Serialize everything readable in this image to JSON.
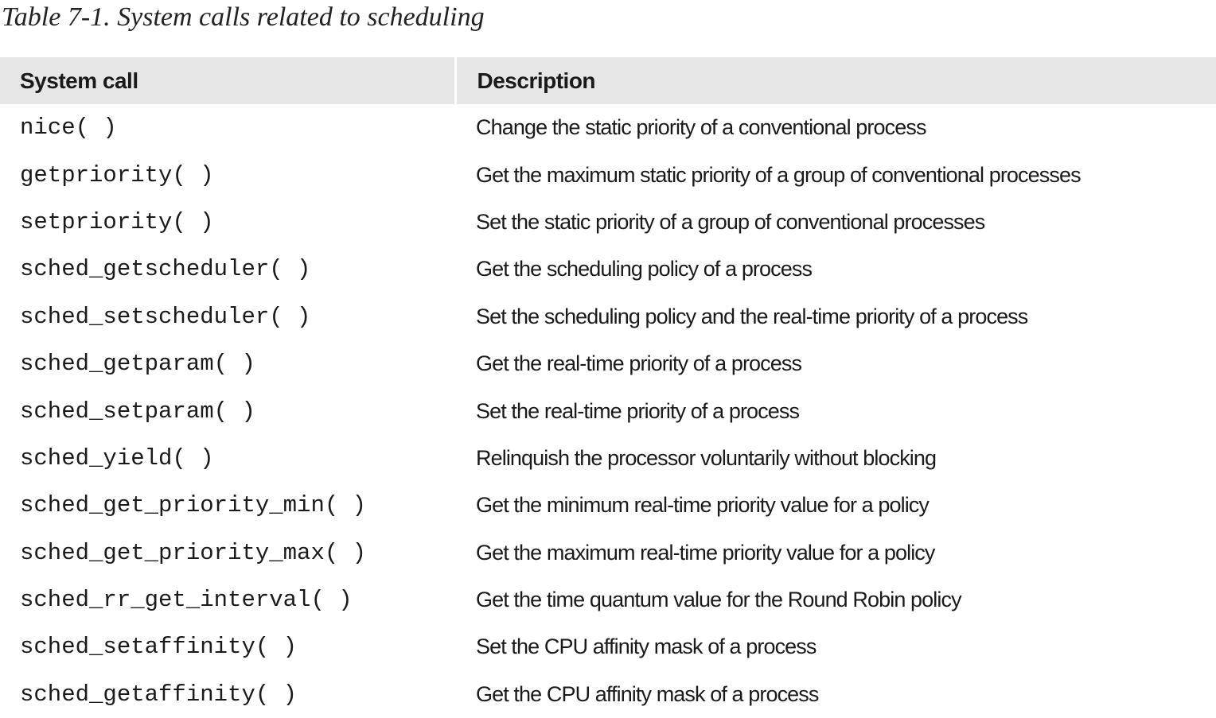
{
  "caption": "Table 7-1. System calls related to scheduling",
  "table": {
    "headers": [
      "System call",
      "Description"
    ],
    "rows": [
      {
        "call": "nice( )",
        "description": "Change the static priority of a conventional process"
      },
      {
        "call": "getpriority( )",
        "description": "Get the maximum static priority of a group of conventional processes"
      },
      {
        "call": "setpriority( )",
        "description": "Set the static priority of a group of conventional processes"
      },
      {
        "call": "sched_getscheduler( )",
        "description": "Get the scheduling policy of a process"
      },
      {
        "call": "sched_setscheduler( )",
        "description": "Set the scheduling policy and the real-time priority of a process"
      },
      {
        "call": "sched_getparam( )",
        "description": "Get the real-time priority of a process"
      },
      {
        "call": "sched_setparam( )",
        "description": "Set the real-time priority of a process"
      },
      {
        "call": "sched_yield( )",
        "description": "Relinquish the processor voluntarily without blocking"
      },
      {
        "call": "sched_get_priority_min( )",
        "description": "Get the minimum real-time priority value for a policy"
      },
      {
        "call": "sched_get_priority_max( )",
        "description": "Get the maximum real-time priority value for a policy"
      },
      {
        "call": "sched_rr_get_interval( )",
        "description": "Get the time quantum value for the Round Robin policy"
      },
      {
        "call": "sched_setaffinity( )",
        "description": "Set the CPU affinity mask of a process"
      },
      {
        "call": "sched_getaffinity( )",
        "description": "Get the CPU affinity mask of a process"
      }
    ]
  }
}
